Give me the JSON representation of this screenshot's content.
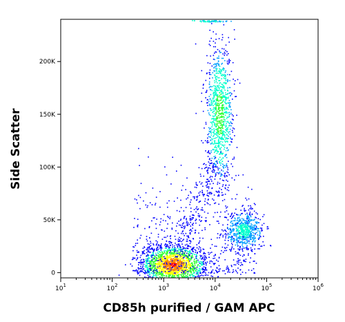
{
  "chart_data": {
    "type": "scatter",
    "plot_style": "flow-cytometry pseudocolor density dot plot",
    "xlabel": "CD85h purified / GAM APC",
    "ylabel": "Side Scatter",
    "x_scale": "log",
    "xlim": [
      10,
      1000000
    ],
    "ylim": [
      -5000,
      240000
    ],
    "x_ticks": [
      {
        "value": 10,
        "base": "10",
        "exp": "1"
      },
      {
        "value": 100,
        "base": "10",
        "exp": "2"
      },
      {
        "value": 1000,
        "base": "10",
        "exp": "3"
      },
      {
        "value": 10000,
        "base": "10",
        "exp": "4"
      },
      {
        "value": 100000,
        "base": "10",
        "exp": "5"
      },
      {
        "value": 1000000,
        "base": "10",
        "exp": "6"
      }
    ],
    "y_ticks": [
      {
        "value": 0,
        "label": "0"
      },
      {
        "value": 50000,
        "label": "50K"
      },
      {
        "value": 100000,
        "label": "100K"
      },
      {
        "value": 150000,
        "label": "150K"
      },
      {
        "value": 200000,
        "label": "200K"
      }
    ],
    "color_scale": [
      "#0000ff",
      "#00a0ff",
      "#00ffcc",
      "#33ff33",
      "#ffff00",
      "#ff8800",
      "#ff0000"
    ],
    "populations": [
      {
        "id": "lymphocytes",
        "x_center": 1500,
        "y_center": 8000,
        "x_spread_decades": 0.32,
        "y_spread": 9000,
        "relative_density": 1.0
      },
      {
        "id": "granulocytes",
        "x_center": 12000,
        "y_center": 150000,
        "x_spread_decades": 0.13,
        "y_spread": 33000,
        "relative_density": 0.55
      },
      {
        "id": "monocytes",
        "x_center": 35000,
        "y_center": 40000,
        "x_spread_decades": 0.18,
        "y_spread": 9000,
        "relative_density": 0.35
      }
    ],
    "grid": false,
    "legend": "none"
  }
}
